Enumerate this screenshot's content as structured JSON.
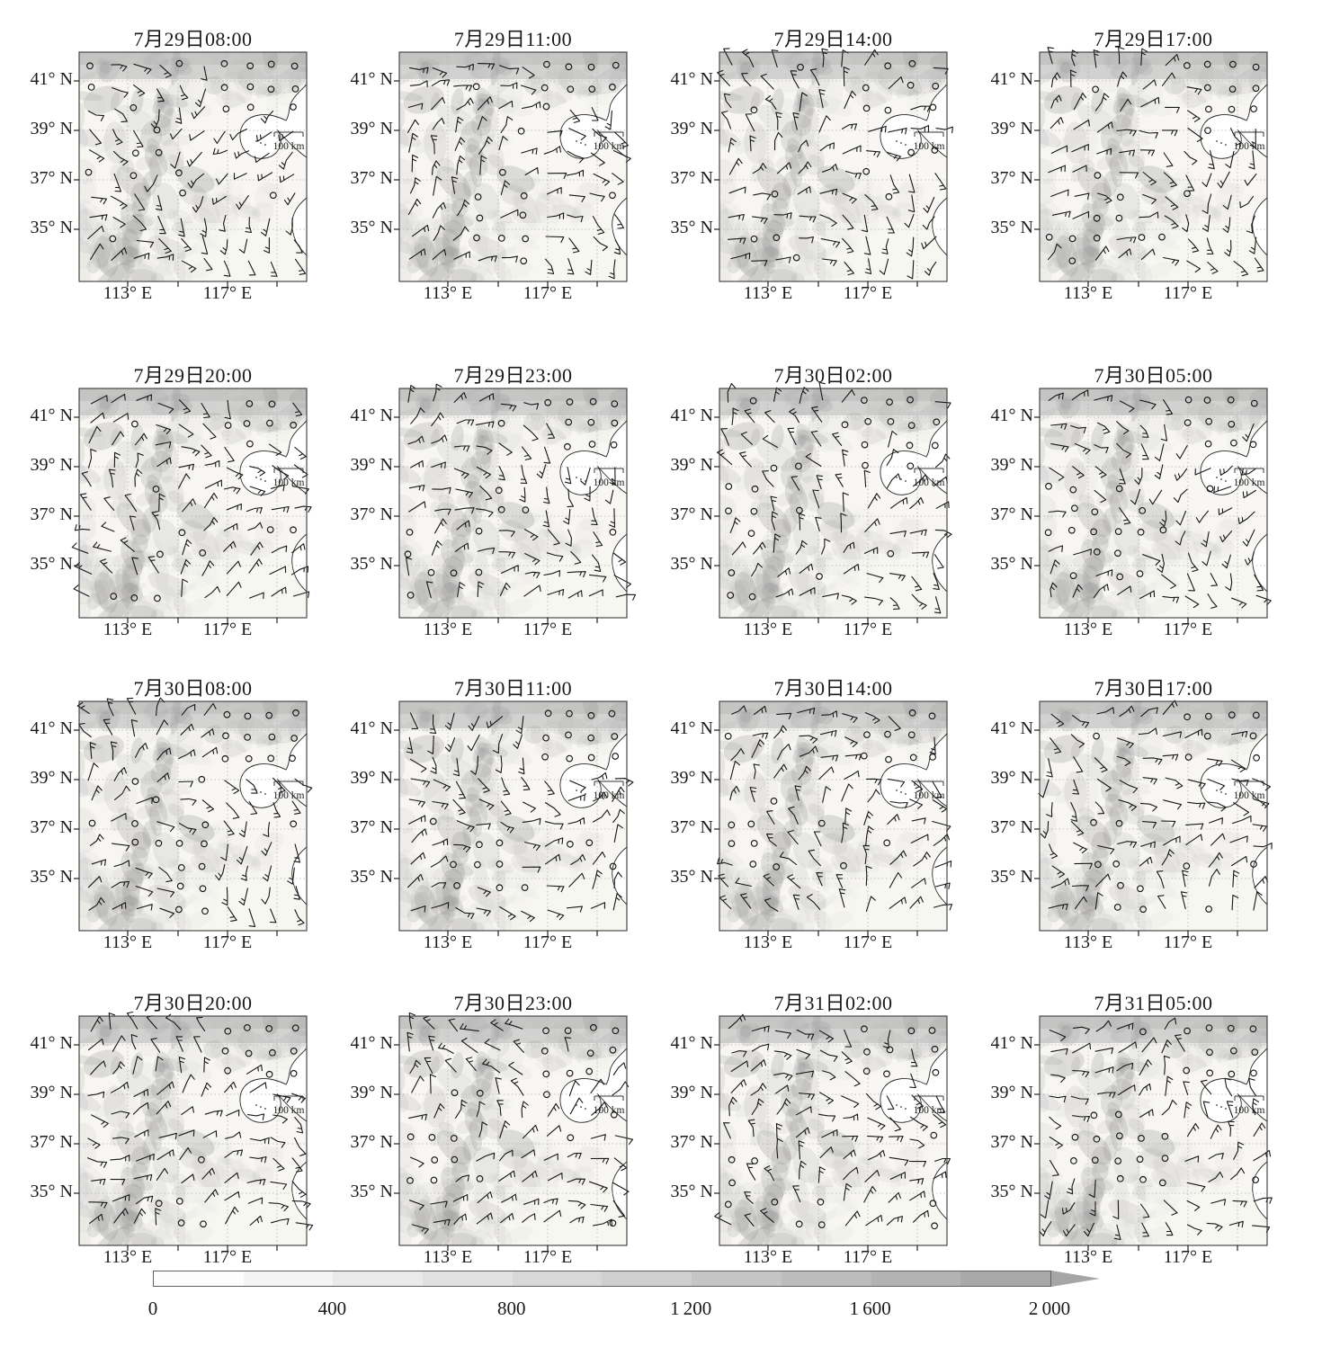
{
  "figure": {
    "panels": [
      {
        "title": "7月29日08:00"
      },
      {
        "title": "7月29日11:00"
      },
      {
        "title": "7月29日14:00"
      },
      {
        "title": "7月29日17:00"
      },
      {
        "title": "7月29日20:00"
      },
      {
        "title": "7月29日23:00"
      },
      {
        "title": "7月30日02:00"
      },
      {
        "title": "7月30日05:00"
      },
      {
        "title": "7月30日08:00"
      },
      {
        "title": "7月30日11:00"
      },
      {
        "title": "7月30日14:00"
      },
      {
        "title": "7月30日17:00"
      },
      {
        "title": "7月30日20:00"
      },
      {
        "title": "7月30日23:00"
      },
      {
        "title": "7月31日02:00"
      },
      {
        "title": "7月31日05:00"
      }
    ],
    "axes": {
      "lat_ticks": [
        "41° N",
        "39° N",
        "37° N",
        "35° N"
      ],
      "lon_ticks": [
        "113° E",
        "117° E"
      ]
    },
    "scale_bar_label": "100 km",
    "colorbar": {
      "tick_labels": [
        "0",
        "400",
        "800",
        "1 200",
        "1 600",
        "2 000"
      ],
      "min_color": "#fdfdfc",
      "max_color": "#a6a6a6"
    }
  },
  "chart_data": {
    "type": "map",
    "subtype": "wind-barb-station-map-grid",
    "panel_times": [
      "7月29日08:00",
      "7月29日11:00",
      "7月29日14:00",
      "7月29日17:00",
      "7月29日20:00",
      "7月29日23:00",
      "7月30日02:00",
      "7月30日05:00",
      "7月30日08:00",
      "7月30日11:00",
      "7月30日14:00",
      "7月30日17:00",
      "7月30日20:00",
      "7月30日23:00",
      "7月31日02:00",
      "7月31日05:00"
    ],
    "lat_ticks_deg_N": [
      41,
      39,
      37,
      35
    ],
    "lon_ticks_deg_E": [
      113,
      117
    ],
    "scale_bar_km": 100,
    "colorbar": {
      "values": [
        0,
        400,
        800,
        1200,
        1600,
        2000
      ],
      "labels": [
        "0",
        "400",
        "800",
        "1 200",
        "1 600",
        "2 000"
      ],
      "style": "stepped grayscale terrain elevation bar with arrow beyond max"
    },
    "symbols": [
      "wind barb (staff with feather ticks)",
      "open circle = calm/missing wind"
    ]
  }
}
